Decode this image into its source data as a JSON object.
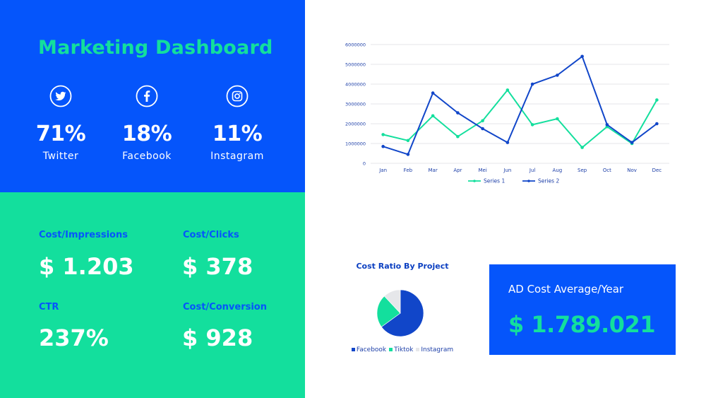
{
  "header": {
    "title": "Marketing Dashboard"
  },
  "social": [
    {
      "icon": "twitter-icon",
      "percent": "71%",
      "name": "Twitter"
    },
    {
      "icon": "facebook-icon",
      "percent": "18%",
      "name": "Facebook"
    },
    {
      "icon": "instagram-icon",
      "percent": "11%",
      "name": "Instagram"
    }
  ],
  "metrics": {
    "cost_impressions": {
      "label": "Cost/Impressions",
      "value": "$ 1.203"
    },
    "cost_clicks": {
      "label": "Cost/Clicks",
      "value": "$ 378"
    },
    "ctr": {
      "label": "CTR",
      "value": "237%"
    },
    "cost_conversion": {
      "label": "Cost/Conversion",
      "value": "$ 928"
    }
  },
  "ad_cost": {
    "label": "AD Cost Average/Year",
    "value": "$ 1.789.021"
  },
  "colors": {
    "blue": "#0555fb",
    "green": "#13df9d",
    "dark_blue": "#1146c9",
    "light_gray": "#e6e7ea"
  },
  "chart_data": [
    {
      "type": "line",
      "categories": [
        "Jan",
        "Feb",
        "Mar",
        "Apr",
        "Mei",
        "Jun",
        "Jul",
        "Aug",
        "Sep",
        "Oct",
        "Nov",
        "Dec"
      ],
      "series": [
        {
          "name": "Series 1",
          "color": "#13df9d",
          "values": [
            1450000,
            1150000,
            2400000,
            1350000,
            2150000,
            3700000,
            1950000,
            2250000,
            800000,
            1850000,
            1000000,
            3200000
          ]
        },
        {
          "name": "Series 2",
          "color": "#1146c9",
          "values": [
            850000,
            450000,
            3550000,
            2550000,
            1750000,
            1050000,
            4000000,
            4450000,
            5400000,
            1950000,
            1050000,
            2000000
          ]
        }
      ],
      "ylim": [
        0,
        6000000
      ],
      "yticks": [
        "0",
        "1000000",
        "2000000",
        "3000000",
        "4000000",
        "5000000",
        "6000000"
      ],
      "grid": true,
      "legend": "bottom"
    },
    {
      "type": "pie",
      "title": "Cost Ratio By Project",
      "labels": [
        "Facebook",
        "Tiktok",
        "Instagram"
      ],
      "values": [
        65,
        23,
        12
      ],
      "colors": [
        "#1146c9",
        "#13df9d",
        "#e6e7ea"
      ],
      "legend": "bottom"
    }
  ]
}
